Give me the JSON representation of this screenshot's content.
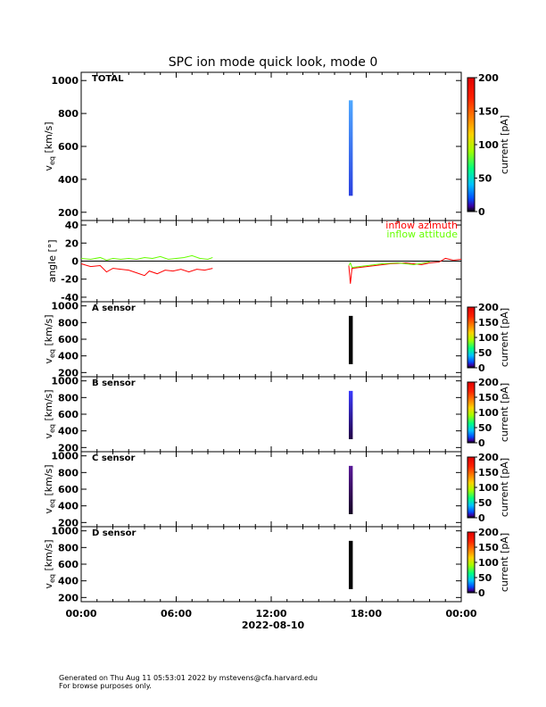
{
  "title": "SPC ion mode quick look, mode 0",
  "date_label": "2022-08-10",
  "footer": {
    "line1": "Generated on Thu Aug 11 05:53:01 2022 by mstevens@cfa.harvard.edu",
    "line2": "For browse purposes only."
  },
  "colors": {
    "azimuth": "#ff0000",
    "attitude": "#66ff00"
  },
  "chart_data": [
    {
      "type": "heatmap",
      "panel": "TOTAL",
      "label": "TOTAL",
      "ylabel": "v_eq [km/s]",
      "ylim": [
        150,
        1050
      ],
      "yticks": [
        200,
        400,
        600,
        800,
        1000
      ],
      "xlim_hours": [
        0,
        24
      ],
      "xticks": [
        "00:00",
        "06:00",
        "12:00",
        "18:00",
        "00:00"
      ],
      "colorbar": {
        "label": "current [pA]",
        "range": [
          0,
          200
        ],
        "ticks": [
          0,
          50,
          100,
          150,
          200
        ]
      },
      "data_blocks": [
        {
          "t_start": 16.9,
          "t_end": 17.15,
          "v_min": 300,
          "v_max": 880,
          "color_top": "#4fa8ff",
          "color_bottom": "#2a40e0"
        }
      ]
    },
    {
      "type": "line",
      "panel": "angle",
      "ylabel": "angle [°]",
      "ylim": [
        -45,
        45
      ],
      "yticks": [
        -40,
        -20,
        0,
        20,
        40
      ],
      "xlim_hours": [
        0,
        24
      ],
      "series": [
        {
          "name": "inflow azimuth",
          "x": [
            0.0,
            0.6,
            1.2,
            1.6,
            2.0,
            2.5,
            3.0,
            3.5,
            4.0,
            4.3,
            4.8,
            5.3,
            5.8,
            6.3,
            6.8,
            7.3,
            7.8,
            8.3,
            16.9,
            17.0,
            17.1,
            19.5,
            20.5,
            21.5,
            22.0,
            22.6,
            23.0,
            23.5,
            24.0
          ],
          "y": [
            -3,
            -6,
            -5,
            -12,
            -8,
            -9,
            -10,
            -13,
            -16,
            -11,
            -14,
            -10,
            -11,
            -9,
            -12,
            -9,
            -10,
            -8,
            -5,
            -25,
            -8,
            -3,
            -2,
            -4,
            -2,
            -1,
            3,
            1,
            2
          ]
        },
        {
          "name": "inflow attitude",
          "x": [
            0.0,
            0.6,
            1.2,
            1.6,
            2.0,
            2.5,
            3.0,
            3.5,
            4.0,
            4.5,
            5.0,
            5.5,
            6.0,
            6.5,
            7.0,
            7.5,
            8.0,
            8.3,
            16.9,
            17.0,
            17.1,
            19.0,
            20.0,
            21.0,
            22.0
          ],
          "y": [
            3,
            2,
            4,
            1,
            3,
            2,
            3,
            2,
            4,
            3,
            5,
            2,
            3,
            4,
            6,
            3,
            2,
            4,
            -5,
            -2,
            -7,
            -3,
            -2,
            -4,
            -1
          ]
        }
      ]
    },
    {
      "type": "heatmap",
      "panel": "A sensor",
      "label": "A sensor",
      "ylabel": "v_eq [km/s]",
      "ylim": [
        150,
        1050
      ],
      "yticks": [
        200,
        400,
        600,
        800,
        1000
      ],
      "colorbar": {
        "label": "current [pA]",
        "range": [
          0,
          200
        ],
        "ticks": [
          0,
          50,
          100,
          150,
          200
        ]
      },
      "data_blocks": [
        {
          "t_start": 16.9,
          "t_end": 17.15,
          "v_min": 300,
          "v_max": 880,
          "color_top": "#000000",
          "color_bottom": "#000000"
        }
      ]
    },
    {
      "type": "heatmap",
      "panel": "B sensor",
      "label": "B sensor",
      "ylabel": "v_eq [km/s]",
      "ylim": [
        150,
        1050
      ],
      "yticks": [
        200,
        400,
        600,
        800,
        1000
      ],
      "colorbar": {
        "label": "current [pA]",
        "range": [
          0,
          200
        ],
        "ticks": [
          0,
          50,
          100,
          150,
          200
        ]
      },
      "data_blocks": [
        {
          "t_start": 16.9,
          "t_end": 17.15,
          "v_min": 300,
          "v_max": 880,
          "color_top": "#3a3aff",
          "color_bottom": "#220044"
        }
      ]
    },
    {
      "type": "heatmap",
      "panel": "C sensor",
      "label": "C sensor",
      "ylabel": "v_eq [km/s]",
      "ylim": [
        150,
        1050
      ],
      "yticks": [
        200,
        400,
        600,
        800,
        1000
      ],
      "colorbar": {
        "label": "current [pA]",
        "range": [
          0,
          200
        ],
        "ticks": [
          0,
          50,
          100,
          150,
          200
        ]
      },
      "data_blocks": [
        {
          "t_start": 16.9,
          "t_end": 17.15,
          "v_min": 300,
          "v_max": 880,
          "color_top": "#5a1a9a",
          "color_bottom": "#140022"
        }
      ]
    },
    {
      "type": "heatmap",
      "panel": "D sensor",
      "label": "D sensor",
      "ylabel": "v_eq [km/s]",
      "ylim": [
        150,
        1050
      ],
      "yticks": [
        200,
        400,
        600,
        800,
        1000
      ],
      "colorbar": {
        "label": "current [pA]",
        "range": [
          0,
          200
        ],
        "ticks": [
          0,
          50,
          100,
          150,
          200
        ]
      },
      "data_blocks": [
        {
          "t_start": 16.9,
          "t_end": 17.15,
          "v_min": 300,
          "v_max": 880,
          "color_top": "#000000",
          "color_bottom": "#000000"
        }
      ]
    }
  ]
}
